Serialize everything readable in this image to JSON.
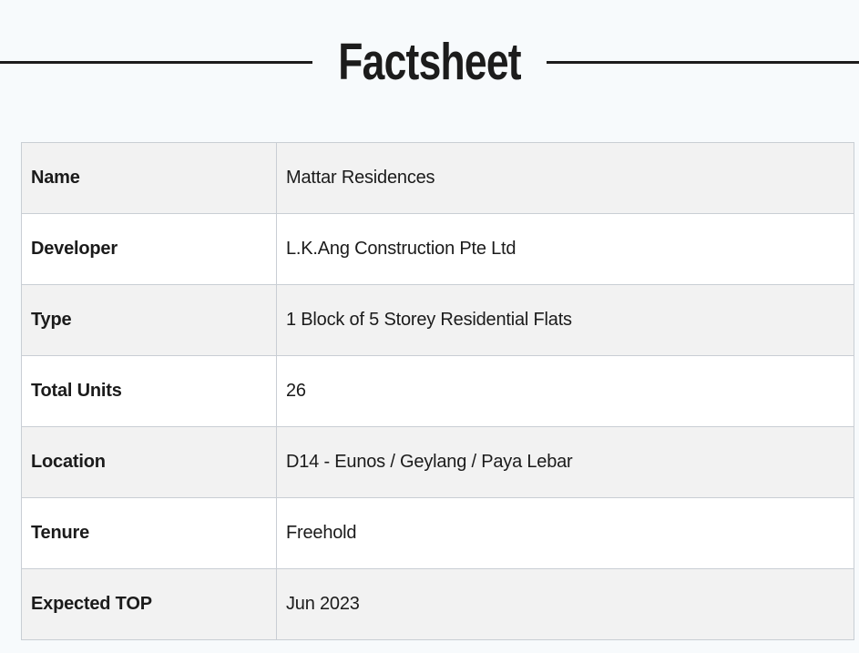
{
  "page": {
    "title": "Factsheet"
  },
  "factsheet": {
    "rows": [
      {
        "label": "Name",
        "value": "Mattar Residences"
      },
      {
        "label": "Developer",
        "value": "L.K.Ang Construction Pte Ltd"
      },
      {
        "label": "Type",
        "value": "1 Block of 5 Storey Residential Flats"
      },
      {
        "label": "Total Units",
        "value": "26"
      },
      {
        "label": "Location",
        "value": "D14 - Eunos / Geylang / Paya Lebar"
      },
      {
        "label": "Tenure",
        "value": "Freehold"
      },
      {
        "label": "Expected TOP",
        "value": "Jun 2023"
      }
    ]
  },
  "colors": {
    "page_background": "#f7fafc",
    "stripe_row": "#f2f2f2",
    "plain_row": "#ffffff",
    "border": "#c9ced4",
    "text": "#1b1b1b",
    "rule_line": "#1c1c1c"
  }
}
